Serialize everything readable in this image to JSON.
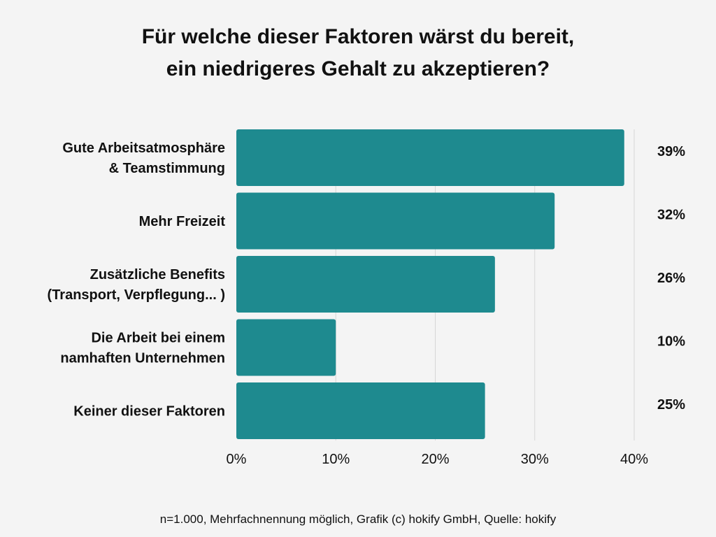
{
  "chart_data": {
    "type": "bar",
    "orientation": "horizontal",
    "title_lines": [
      "Für welche dieser Faktoren wärst du bereit,",
      "ein niedrigeres Gehalt zu akzeptieren?"
    ],
    "categories": [
      [
        "Gute Arbeitsatmosphäre",
        "& Teamstimmung"
      ],
      [
        "Mehr Freizeit"
      ],
      [
        "Zusätzliche Benefits",
        "(Transport, Verpflegung... )"
      ],
      [
        "Die Arbeit bei einem",
        "namhaften Unternehmen"
      ],
      [
        "Keiner dieser Faktoren"
      ]
    ],
    "values": [
      39,
      32,
      26,
      10,
      25
    ],
    "value_labels": [
      "39%",
      "32%",
      "26%",
      "10%",
      "25%"
    ],
    "xlim": [
      0,
      40
    ],
    "x_ticks": [
      0,
      10,
      20,
      30,
      40
    ],
    "x_tick_labels": [
      "0%",
      "10%",
      "20%",
      "30%",
      "40%"
    ],
    "grid": true,
    "bar_color": "#1e8a8f",
    "grid_color": "#d6d6d6"
  },
  "footer": "n=1.000, Mehrfachnennung möglich, Grafik (c) hokify GmbH, Quelle: hokify"
}
